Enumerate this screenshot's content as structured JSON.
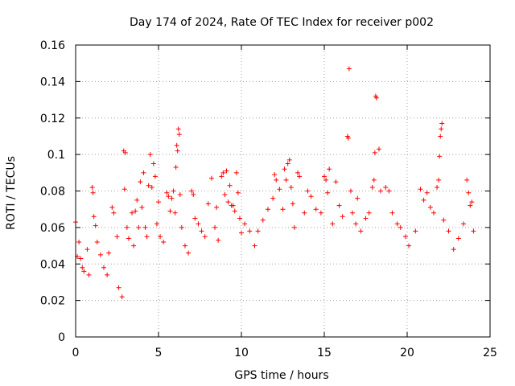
{
  "chart_data": {
    "type": "scatter",
    "title": "Day 174 of 2024, Rate Of TEC Index for receiver p002",
    "xlabel": "GPS time / hours",
    "ylabel": "ROTI / TECUs",
    "xlim": [
      0,
      25
    ],
    "ylim": [
      0,
      0.16
    ],
    "xticks": [
      0,
      5,
      10,
      15,
      20,
      25
    ],
    "xtick_labels": [
      "0",
      "5",
      "10",
      "15",
      "20",
      "25"
    ],
    "yticks": [
      0,
      0.02,
      0.04,
      0.06,
      0.08,
      0.1,
      0.12,
      0.14,
      0.16
    ],
    "ytick_labels": [
      "0",
      "0.02",
      "0.04",
      "0.06",
      "0.08",
      "0.1",
      "0.12",
      "0.14",
      "0.16"
    ],
    "grid": true,
    "marker": "+",
    "marker_color": "#ff0000",
    "series": [
      {
        "name": "ROTI",
        "points": [
          [
            0.0,
            0.063
          ],
          [
            0.1,
            0.044
          ],
          [
            0.2,
            0.052
          ],
          [
            0.3,
            0.043
          ],
          [
            0.4,
            0.038
          ],
          [
            0.5,
            0.036
          ],
          [
            0.7,
            0.048
          ],
          [
            0.8,
            0.034
          ],
          [
            1.0,
            0.082
          ],
          [
            1.05,
            0.079
          ],
          [
            1.1,
            0.066
          ],
          [
            1.2,
            0.061
          ],
          [
            1.3,
            0.052
          ],
          [
            1.5,
            0.045
          ],
          [
            1.7,
            0.038
          ],
          [
            1.9,
            0.034
          ],
          [
            2.0,
            0.046
          ],
          [
            2.2,
            0.071
          ],
          [
            2.3,
            0.068
          ],
          [
            2.5,
            0.055
          ],
          [
            2.6,
            0.027
          ],
          [
            2.8,
            0.022
          ],
          [
            2.9,
            0.102
          ],
          [
            3.0,
            0.101
          ],
          [
            2.95,
            0.081
          ],
          [
            3.1,
            0.06
          ],
          [
            3.2,
            0.054
          ],
          [
            3.4,
            0.068
          ],
          [
            3.5,
            0.05
          ],
          [
            3.6,
            0.069
          ],
          [
            3.7,
            0.075
          ],
          [
            3.8,
            0.06
          ],
          [
            3.9,
            0.085
          ],
          [
            4.0,
            0.071
          ],
          [
            4.1,
            0.09
          ],
          [
            4.2,
            0.06
          ],
          [
            4.3,
            0.055
          ],
          [
            4.4,
            0.083
          ],
          [
            4.5,
            0.1
          ],
          [
            4.6,
            0.082
          ],
          [
            4.7,
            0.095
          ],
          [
            4.8,
            0.088
          ],
          [
            4.9,
            0.062
          ],
          [
            5.0,
            0.074
          ],
          [
            5.1,
            0.055
          ],
          [
            5.3,
            0.052
          ],
          [
            5.5,
            0.079
          ],
          [
            5.6,
            0.077
          ],
          [
            5.7,
            0.069
          ],
          [
            5.8,
            0.076
          ],
          [
            5.9,
            0.08
          ],
          [
            6.0,
            0.068
          ],
          [
            6.05,
            0.093
          ],
          [
            6.1,
            0.105
          ],
          [
            6.15,
            0.102
          ],
          [
            6.2,
            0.114
          ],
          [
            6.25,
            0.111
          ],
          [
            6.3,
            0.078
          ],
          [
            6.4,
            0.06
          ],
          [
            6.6,
            0.05
          ],
          [
            6.8,
            0.046
          ],
          [
            7.0,
            0.08
          ],
          [
            7.1,
            0.078
          ],
          [
            7.2,
            0.065
          ],
          [
            7.4,
            0.062
          ],
          [
            7.6,
            0.058
          ],
          [
            7.8,
            0.055
          ],
          [
            8.0,
            0.073
          ],
          [
            8.2,
            0.087
          ],
          [
            8.4,
            0.06
          ],
          [
            8.5,
            0.071
          ],
          [
            8.6,
            0.053
          ],
          [
            8.8,
            0.088
          ],
          [
            8.9,
            0.09
          ],
          [
            9.0,
            0.078
          ],
          [
            9.1,
            0.091
          ],
          [
            9.2,
            0.074
          ],
          [
            9.3,
            0.083
          ],
          [
            9.4,
            0.072
          ],
          [
            9.5,
            0.072
          ],
          [
            9.6,
            0.069
          ],
          [
            9.7,
            0.09
          ],
          [
            9.8,
            0.079
          ],
          [
            9.9,
            0.065
          ],
          [
            10.0,
            0.057
          ],
          [
            10.2,
            0.062
          ],
          [
            10.5,
            0.058
          ],
          [
            10.8,
            0.05
          ],
          [
            11.0,
            0.058
          ],
          [
            11.3,
            0.064
          ],
          [
            11.6,
            0.07
          ],
          [
            11.9,
            0.076
          ],
          [
            12.0,
            0.089
          ],
          [
            12.1,
            0.086
          ],
          [
            12.3,
            0.081
          ],
          [
            12.5,
            0.07
          ],
          [
            12.6,
            0.092
          ],
          [
            12.7,
            0.086
          ],
          [
            12.8,
            0.095
          ],
          [
            12.9,
            0.097
          ],
          [
            13.0,
            0.082
          ],
          [
            13.1,
            0.073
          ],
          [
            13.2,
            0.06
          ],
          [
            13.4,
            0.09
          ],
          [
            13.5,
            0.088
          ],
          [
            13.8,
            0.068
          ],
          [
            14.0,
            0.08
          ],
          [
            14.2,
            0.077
          ],
          [
            14.5,
            0.07
          ],
          [
            14.8,
            0.068
          ],
          [
            15.0,
            0.088
          ],
          [
            15.1,
            0.086
          ],
          [
            15.2,
            0.079
          ],
          [
            15.3,
            0.092
          ],
          [
            15.5,
            0.062
          ],
          [
            15.7,
            0.085
          ],
          [
            15.9,
            0.072
          ],
          [
            16.1,
            0.066
          ],
          [
            16.4,
            0.11
          ],
          [
            16.45,
            0.109
          ],
          [
            16.5,
            0.147
          ],
          [
            16.6,
            0.08
          ],
          [
            16.7,
            0.068
          ],
          [
            16.9,
            0.062
          ],
          [
            17.0,
            0.076
          ],
          [
            17.2,
            0.058
          ],
          [
            17.5,
            0.065
          ],
          [
            17.7,
            0.068
          ],
          [
            17.9,
            0.082
          ],
          [
            18.0,
            0.086
          ],
          [
            18.05,
            0.101
          ],
          [
            18.1,
            0.132
          ],
          [
            18.15,
            0.131
          ],
          [
            18.3,
            0.103
          ],
          [
            18.4,
            0.08
          ],
          [
            18.7,
            0.082
          ],
          [
            18.9,
            0.08
          ],
          [
            19.1,
            0.068
          ],
          [
            19.4,
            0.062
          ],
          [
            19.6,
            0.06
          ],
          [
            19.9,
            0.055
          ],
          [
            20.1,
            0.05
          ],
          [
            20.5,
            0.058
          ],
          [
            20.8,
            0.081
          ],
          [
            21.0,
            0.075
          ],
          [
            21.2,
            0.079
          ],
          [
            21.4,
            0.071
          ],
          [
            21.6,
            0.068
          ],
          [
            21.8,
            0.082
          ],
          [
            21.9,
            0.086
          ],
          [
            21.95,
            0.099
          ],
          [
            22.0,
            0.11
          ],
          [
            22.05,
            0.114
          ],
          [
            22.1,
            0.117
          ],
          [
            22.2,
            0.064
          ],
          [
            22.5,
            0.058
          ],
          [
            22.8,
            0.048
          ],
          [
            23.1,
            0.054
          ],
          [
            23.4,
            0.062
          ],
          [
            23.6,
            0.086
          ],
          [
            23.7,
            0.079
          ],
          [
            23.8,
            0.072
          ],
          [
            23.9,
            0.074
          ],
          [
            24.0,
            0.058
          ]
        ]
      }
    ]
  }
}
